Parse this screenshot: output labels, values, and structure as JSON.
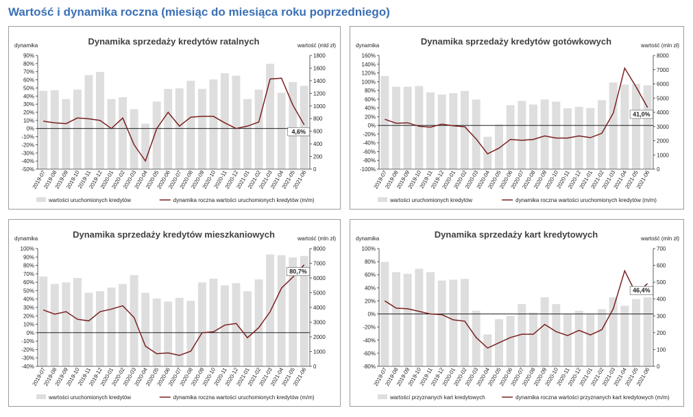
{
  "page": {
    "title": "Wartość i dynamika roczna (miesiąc do miesiąca roku poprzedniego)"
  },
  "colors": {
    "bar": "#dedede",
    "line": "#7a1f1f",
    "title": "#3a6fb5",
    "zero_line": "#000000"
  },
  "chart_data": [
    {
      "type": "bar",
      "title": "Dynamika sprzedaży kredytów ratalnych",
      "ylabel_left": "dynamika",
      "ylabel_right": "wartość (mld zł)",
      "legend_bar": "wartości uruchomionych kredytów",
      "legend_line": "dynamika roczna wartości uruchomionych kredytów (m/m)",
      "annotation": "4,6%",
      "left_ticks": [
        "90%",
        "80%",
        "70%",
        "60%",
        "50%",
        "40%",
        "30%",
        "20%",
        "10%",
        "0%",
        "-10%",
        "-20%",
        "-30%",
        "-40%",
        "-50%"
      ],
      "right_ticks": [
        "1800",
        "1600",
        "1400",
        "1200",
        "1000",
        "800",
        "600",
        "400",
        "200",
        "0"
      ],
      "left_range": [
        -50,
        90
      ],
      "right_range": [
        0,
        1800
      ],
      "categories": [
        "2019-07",
        "2019-08",
        "2019-09",
        "2019-10",
        "2019-11",
        "2019-12",
        "2020-01",
        "2020-02",
        "2020-03",
        "2020-04",
        "2020-05",
        "2020-06",
        "2020-07",
        "2020-08",
        "2020-09",
        "2020-10",
        "2020-11",
        "2020-12",
        "2021-01",
        "2021-02",
        "2021-03",
        "2021-04",
        "2021-05",
        "2021-06"
      ],
      "series": [
        {
          "kind": "bar",
          "name": "wartości uruchomionych kredytów",
          "values": [
            1240,
            1250,
            1110,
            1260,
            1490,
            1540,
            1110,
            1140,
            950,
            720,
            1070,
            1270,
            1280,
            1400,
            1270,
            1420,
            1520,
            1480,
            1110,
            1260,
            1670,
            1210,
            1380,
            1320
          ]
        },
        {
          "kind": "line",
          "name": "dynamika roczna wartości uruchomionych kredytów (m/m)",
          "values": [
            9,
            7,
            6,
            13,
            12,
            10,
            0,
            13,
            -20,
            -40,
            0,
            20,
            3,
            14,
            15,
            15,
            7,
            0,
            3,
            8,
            61,
            62,
            29,
            4.6
          ]
        }
      ],
      "x_axis_at": 0
    },
    {
      "type": "bar",
      "title": "Dynamika sprzedaży kredytów gotówkowych",
      "ylabel_left": "dynamika",
      "ylabel_right": "wartość (mln zł)",
      "legend_bar": "wartości uruchomionych kredytów",
      "legend_line": "dynamika roczna wartości uruchomionych kredytów (m/m)",
      "annotation": "41,0%",
      "left_ticks": [
        "160%",
        "140%",
        "120%",
        "100%",
        "80%",
        "60%",
        "40%",
        "20%",
        "0%",
        "-20%",
        "-40%",
        "-60%",
        "-80%",
        "-100%"
      ],
      "right_ticks": [
        "8000",
        "7000",
        "6000",
        "5000",
        "4000",
        "3000",
        "2000",
        "1000",
        "0"
      ],
      "left_range": [
        -100,
        160
      ],
      "right_range": [
        0,
        8000
      ],
      "categories": [
        "2019-07",
        "2019-08",
        "2019-09",
        "2019-10",
        "2019-11",
        "2019-12",
        "2020-01",
        "2020-02",
        "2020-03",
        "2020-04",
        "2020-05",
        "2020-06",
        "2020-07",
        "2020-08",
        "2020-09",
        "2020-10",
        "2020-11",
        "2020-12",
        "2021-01",
        "2021-02",
        "2021-03",
        "2021-04",
        "2021-05",
        "2021-06"
      ],
      "series": [
        {
          "kind": "bar",
          "name": "wartości uruchomionych kredytów",
          "values": [
            6550,
            5800,
            5800,
            5850,
            5400,
            5250,
            5350,
            5500,
            4900,
            2280,
            3150,
            4500,
            4800,
            4550,
            4900,
            4750,
            4280,
            4380,
            4300,
            4850,
            6100,
            5950,
            6000,
            5900
          ]
        },
        {
          "kind": "line",
          "name": "dynamika roczna wartości uruchomionych kredytów (m/m)",
          "values": [
            14,
            5,
            6,
            -2,
            -4,
            3,
            -1,
            -3,
            -31,
            -65,
            -52,
            -32,
            -34,
            -32,
            -24,
            -29,
            -29,
            -24,
            -28,
            -18,
            28,
            131,
            88,
            41.0
          ]
        }
      ],
      "x_axis_at": 0
    },
    {
      "type": "bar",
      "title": "Dynamika sprzedaży kredytów mieszkaniowych",
      "ylabel_left": "dynamika",
      "ylabel_right": "wartość (mln zł)",
      "legend_bar": "wartości uruchomionych kredytów",
      "legend_line": "dynamika roczna wartości uruchomionych kredytów (m/m)",
      "annotation": "80,7%",
      "left_ticks": [
        "100%",
        "90%",
        "80%",
        "70%",
        "60%",
        "50%",
        "40%",
        "30%",
        "20%",
        "10%",
        "0%",
        "-10%",
        "-20%",
        "-30%",
        "-40%"
      ],
      "right_ticks": [
        "8000",
        "7000",
        "6000",
        "5000",
        "4000",
        "3000",
        "2000",
        "1000",
        "0"
      ],
      "left_range": [
        -40,
        100
      ],
      "right_range": [
        0,
        8000
      ],
      "categories": [
        "2019-07",
        "2019-08",
        "2019-09",
        "2019-10",
        "2019-11",
        "2019-12",
        "2020-01",
        "2020-02",
        "2020-03",
        "2020-04",
        "2020-05",
        "2020-06",
        "2020-07",
        "2020-08",
        "2020-09",
        "2020-10",
        "2020-11",
        "2020-12",
        "2021-01",
        "2021-02",
        "2021-03",
        "2021-04",
        "2021-05",
        "2021-06"
      ],
      "series": [
        {
          "kind": "bar",
          "name": "wartości uruchomionych kredytów",
          "values": [
            6100,
            5600,
            5700,
            6000,
            5000,
            5100,
            5350,
            5600,
            6200,
            5000,
            4600,
            4400,
            4650,
            4450,
            5700,
            5950,
            5500,
            5650,
            5100,
            5900,
            7600,
            7550,
            7400,
            7500
          ]
        },
        {
          "kind": "line",
          "name": "dynamika roczna wartości uruchomionych kredytów (m/m)",
          "values": [
            27,
            22,
            25,
            16,
            14,
            25,
            28,
            32,
            18,
            -16,
            -25,
            -24,
            -27,
            -22,
            0,
            1,
            9,
            11,
            -6,
            6,
            25,
            53,
            66,
            80.7
          ]
        }
      ],
      "x_axis_at": 0
    },
    {
      "type": "bar",
      "title": "Dynamika sprzedaży kart kredytowych",
      "ylabel_left": "dynamika",
      "ylabel_right": "wartość (mln zł)",
      "legend_bar": "wartości przyznanych kart kredytowych",
      "legend_line": "dynamika roczna wartości przyznanych kart kredytowych (m/m)",
      "annotation": "46,4%",
      "left_ticks": [
        "100%",
        "80%",
        "60%",
        "40%",
        "20%",
        "0%",
        "-20%",
        "-40%",
        "-60%",
        "-80%"
      ],
      "right_ticks": [
        "700",
        "600",
        "500",
        "400",
        "300",
        "200",
        "100",
        "0"
      ],
      "left_range": [
        -80,
        100
      ],
      "right_range": [
        0,
        700
      ],
      "categories": [
        "2019-07",
        "2019-08",
        "2019-09",
        "2019-10",
        "2019-11",
        "2019-12",
        "2020-01",
        "2020-02",
        "2020-03",
        "2020-04",
        "2020-05",
        "2020-06",
        "2020-07",
        "2020-08",
        "2020-09",
        "2020-10",
        "2020-11",
        "2020-12",
        "2021-01",
        "2021-02",
        "2021-03",
        "2021-04",
        "2021-05",
        "2021-06"
      ],
      "series": [
        {
          "kind": "bar",
          "name": "wartości przyznanych kart kredytowych",
          "values": [
            620,
            560,
            550,
            580,
            560,
            510,
            515,
            520,
            330,
            190,
            280,
            300,
            370,
            320,
            410,
            370,
            310,
            330,
            310,
            340,
            410,
            360,
            400,
            410
          ]
        },
        {
          "kind": "line",
          "name": "dynamika roczna wartości przyznanych kart kredytowych (m/m)",
          "values": [
            20,
            9,
            8,
            4,
            0,
            -1,
            -9,
            -11,
            -36,
            -52,
            -44,
            -36,
            -31,
            -31,
            -16,
            -27,
            -33,
            -25,
            -32,
            -24,
            8,
            66,
            31,
            46.4
          ]
        }
      ],
      "x_axis_at": 0
    }
  ]
}
